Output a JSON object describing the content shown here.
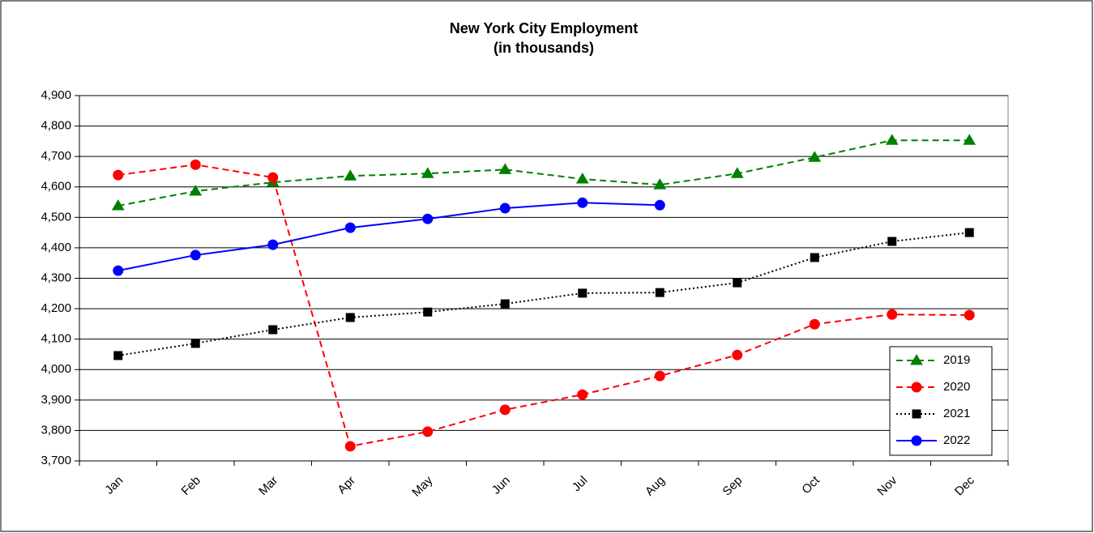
{
  "chart_data": {
    "type": "line",
    "title": "New York City Employment",
    "subtitle": "(in thousands)",
    "categories": [
      "Jan",
      "Feb",
      "Mar",
      "Apr",
      "May",
      "Jun",
      "Jul",
      "Aug",
      "Sep",
      "Oct",
      "Nov",
      "Dec"
    ],
    "series": [
      {
        "name": "2019",
        "color": "#008000",
        "dash": "dashed",
        "marker": "triangle",
        "values": [
          4538,
          4586,
          4615,
          4636,
          4644,
          4657,
          4626,
          4607,
          4644,
          4697,
          4753,
          4753
        ]
      },
      {
        "name": "2020",
        "color": "#ff0000",
        "dash": "dashed",
        "marker": "circle",
        "values": [
          4639,
          4673,
          4631,
          3748,
          3796,
          3868,
          3918,
          3979,
          4048,
          4149,
          4181,
          4179
        ]
      },
      {
        "name": "2021",
        "color": "#000000",
        "dash": "dotted",
        "marker": "square",
        "values": [
          4046,
          4086,
          4131,
          4171,
          4189,
          4216,
          4251,
          4253,
          4285,
          4368,
          4421,
          4450
        ]
      },
      {
        "name": "2022",
        "color": "#0000ff",
        "dash": "solid",
        "marker": "circle",
        "values": [
          4325,
          4376,
          4410,
          4466,
          4495,
          4530,
          4548,
          4540,
          null,
          null,
          null,
          null
        ]
      }
    ],
    "ylim": [
      3700,
      4900
    ],
    "yticks": [
      {
        "value": 3700,
        "label": "3,700"
      },
      {
        "value": 3800,
        "label": "3,800"
      },
      {
        "value": 3900,
        "label": "3,900"
      },
      {
        "value": 4000,
        "label": "4,000"
      },
      {
        "value": 4100,
        "label": "4,100"
      },
      {
        "value": 4200,
        "label": "4,200"
      },
      {
        "value": 4300,
        "label": "4,300"
      },
      {
        "value": 4400,
        "label": "4,400"
      },
      {
        "value": 4500,
        "label": "4,500"
      },
      {
        "value": 4600,
        "label": "4,600"
      },
      {
        "value": 4700,
        "label": "4,700"
      },
      {
        "value": 4800,
        "label": "4,800"
      },
      {
        "value": 4900,
        "label": "4,900"
      }
    ],
    "grid": true,
    "legend": "lower right"
  }
}
